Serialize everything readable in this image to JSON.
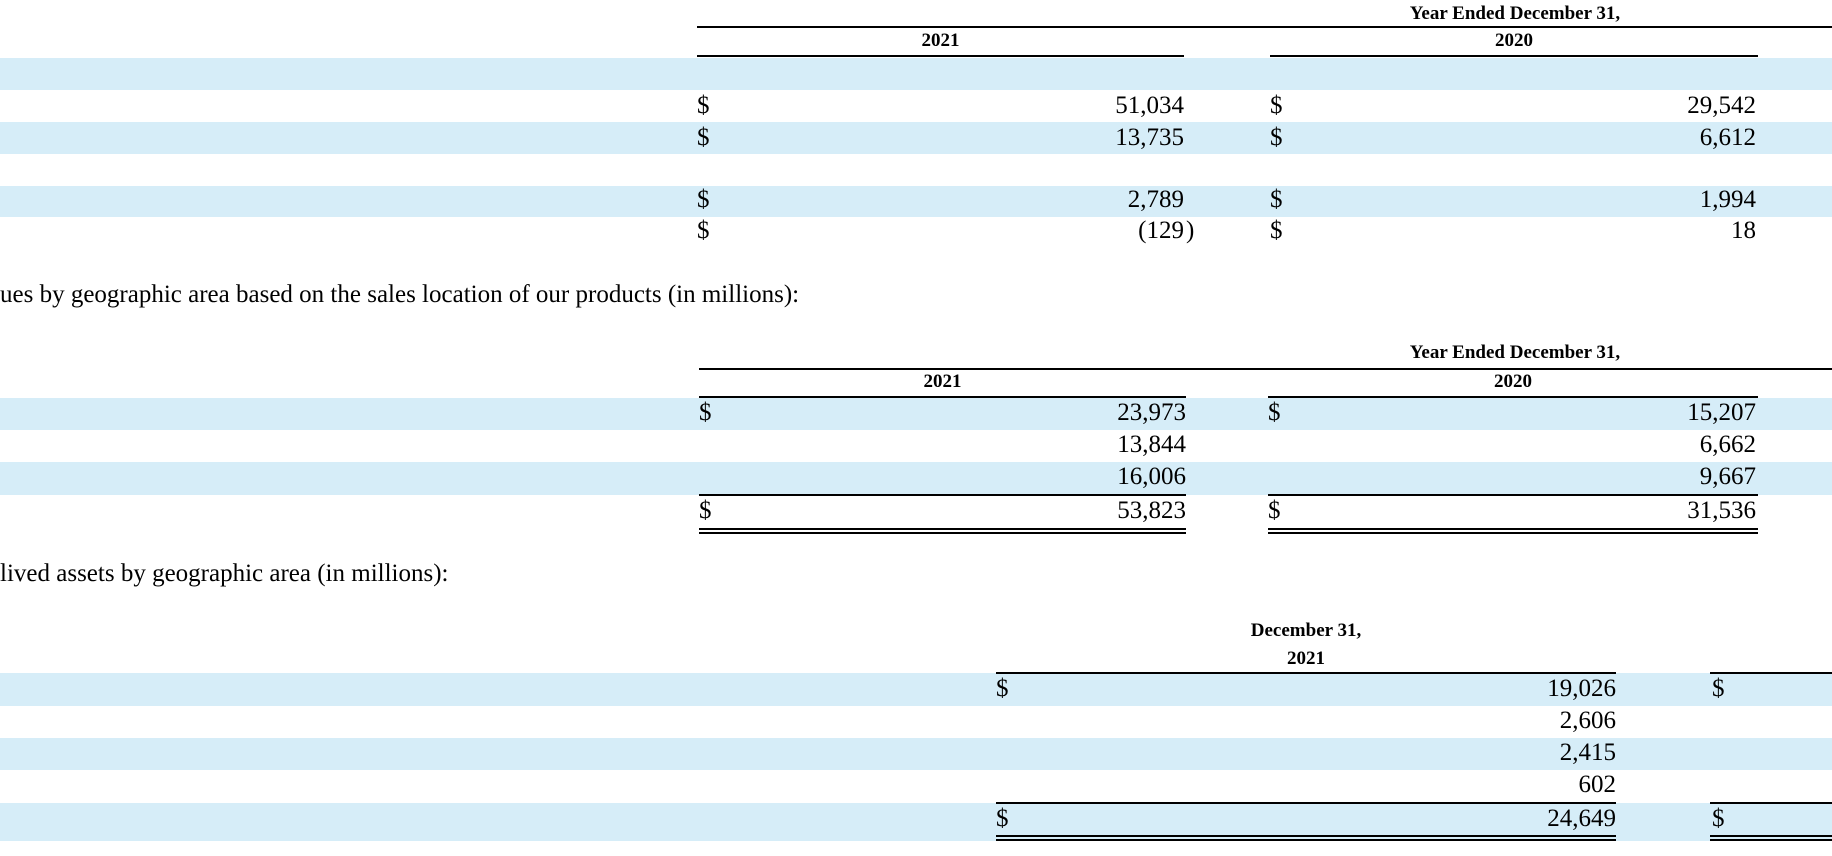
{
  "segment_table": {
    "header_group": "Year Ended December 31,",
    "col_2021": "2021",
    "col_2020": "2020",
    "rows": [
      {
        "cur21": "$",
        "v2021": "51,034",
        "cur20": "$",
        "v2020": "29,542"
      },
      {
        "cur21": "$",
        "v2021": "13,735",
        "cur20": "$",
        "v2020": "6,612"
      },
      {
        "cur21": "$",
        "v2021": "2,789",
        "cur20": "$",
        "v2020": "1,994"
      },
      {
        "cur21": "$",
        "v2021": "(129",
        "close": ")",
        "cur20": "$",
        "v2020": "18"
      }
    ]
  },
  "geo_revenue_intro": "ues by geographic area based on the sales location of our products (in millions):",
  "geo_revenue_table": {
    "header_group": "Year Ended December 31,",
    "col_2021": "2021",
    "col_2020": "2020",
    "rows": [
      {
        "cur21": "$",
        "v2021": "23,973",
        "cur20": "$",
        "v2020": "15,207"
      },
      {
        "cur21": "",
        "v2021": "13,844",
        "cur20": "",
        "v2020": "6,662"
      },
      {
        "cur21": "",
        "v2021": "16,006",
        "cur20": "",
        "v2020": "9,667"
      },
      {
        "cur21": "$",
        "v2021": "53,823",
        "cur20": "$",
        "v2020": "31,536"
      }
    ]
  },
  "long_lived_intro": "lived assets by geographic area (in millions):",
  "long_lived_table": {
    "header_line1": "December 31,",
    "header_line2": "2021",
    "rows": [
      {
        "cur": "$",
        "value": "19,026",
        "next_cur": "$"
      },
      {
        "cur": "",
        "value": "2,606",
        "next_cur": ""
      },
      {
        "cur": "",
        "value": "2,415",
        "next_cur": ""
      },
      {
        "cur": "",
        "value": "602",
        "next_cur": ""
      },
      {
        "cur": "$",
        "value": "24,649",
        "next_cur": "$"
      }
    ]
  }
}
